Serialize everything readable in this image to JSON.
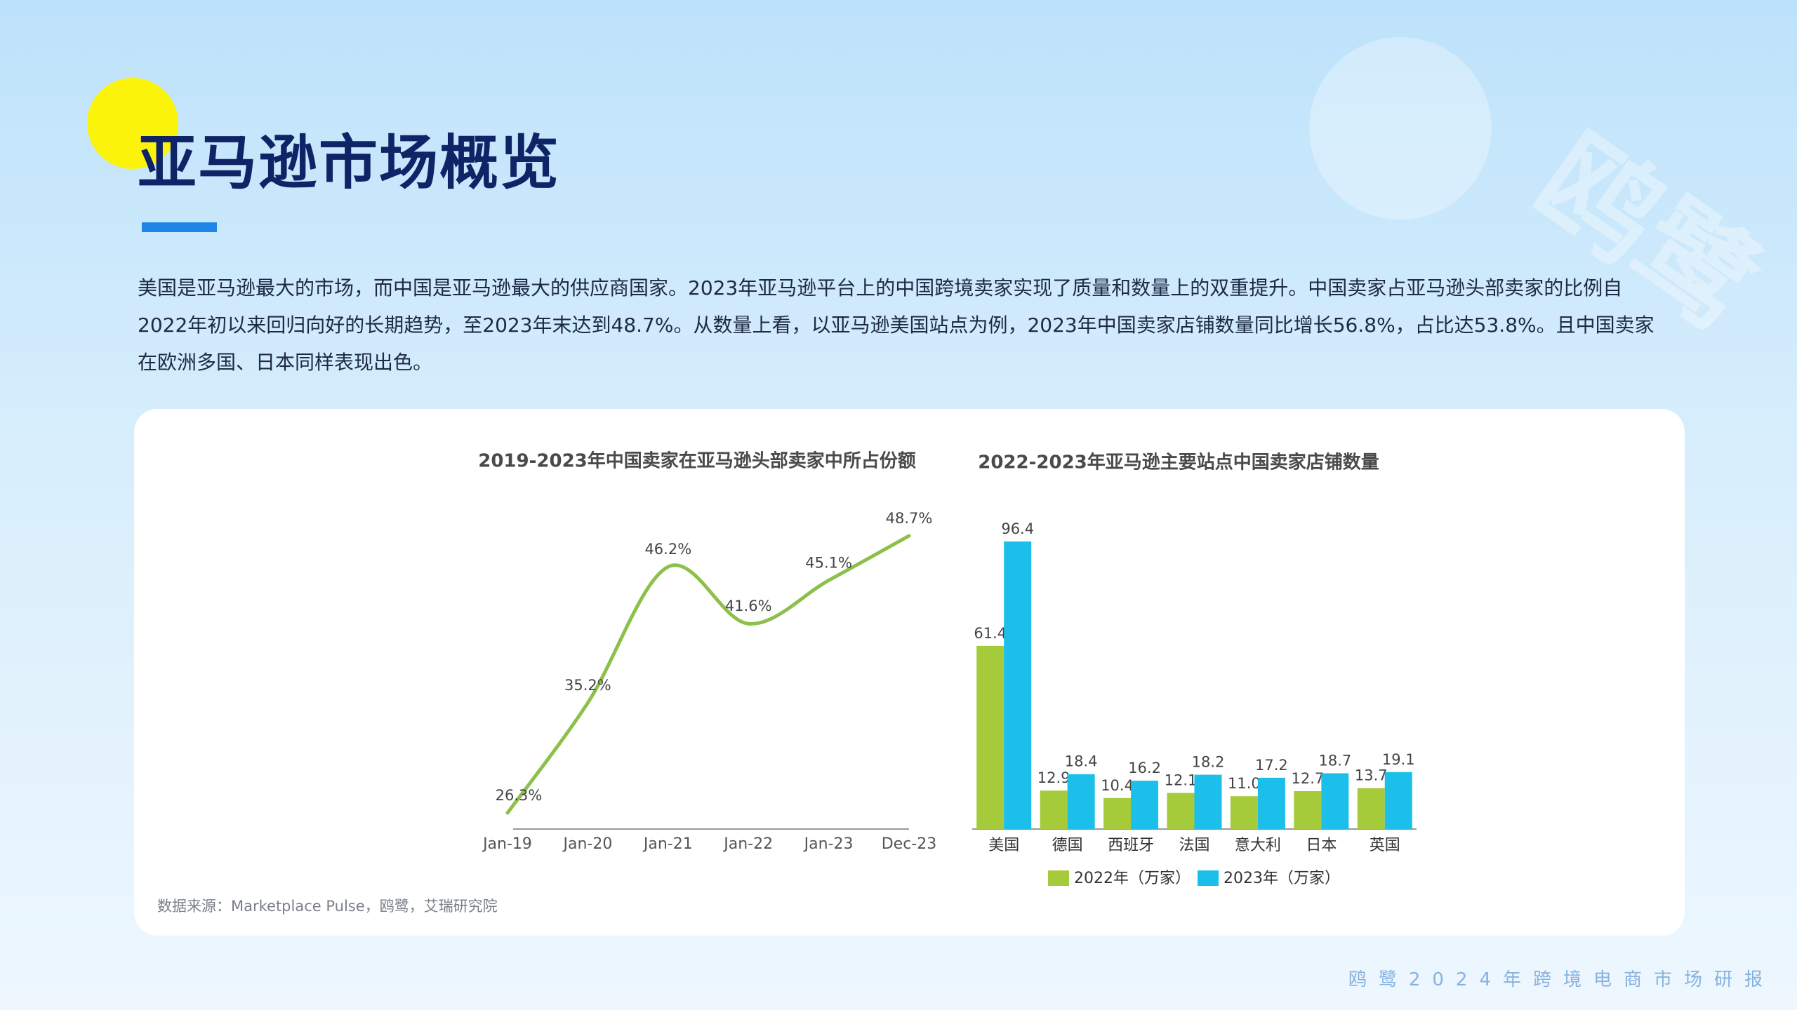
{
  "header": {
    "title": "亚马逊市场概览",
    "body": "美国是亚马逊最大的市场，而中国是亚马逊最大的供应商国家。2023年亚马逊平台上的中国跨境卖家实现了质量和数量上的双重提升。中国卖家占亚马逊头部卖家的比例自2022年初以来回归向好的长期趋势，至2023年末达到48.7%。从数量上看，以亚马逊美国站点为例，2023年中国卖家店铺数量同比增长56.8%，占比达53.8%。且中国卖家在欧洲多国、日本同样表现出色。",
    "source": "数据来源：Marketplace Pulse，鸥鹭，艾瑞研究院",
    "watermark": "鸥鹭",
    "footer": "鸥鹭2024年跨境电商市场研报"
  },
  "chart_data": [
    {
      "type": "line",
      "title": "2019-2023年中国卖家在亚马逊头部卖家中所占份额",
      "categories": [
        "Jan-19",
        "Jan-20",
        "Jan-21",
        "Jan-22",
        "Jan-23",
        "Dec-23"
      ],
      "values": [
        26.3,
        35.2,
        46.2,
        41.6,
        45.1,
        48.7
      ],
      "value_labels": [
        "26.3%",
        "35.2%",
        "46.2%",
        "41.6%",
        "45.1%",
        "48.7%"
      ],
      "color": "#8cc04a"
    },
    {
      "type": "bar",
      "title": "2022-2023年亚马逊主要站点中国卖家店铺数量",
      "categories": [
        "美国",
        "德国",
        "西班牙",
        "法国",
        "意大利",
        "日本",
        "英国"
      ],
      "series": [
        {
          "name": "2022年（万家）",
          "color": "#a5ca3a",
          "values": [
            61.4,
            12.9,
            10.4,
            12.1,
            11.0,
            12.7,
            13.7
          ],
          "value_labels": [
            "61.4",
            "12.9",
            "10.4",
            "12.1",
            "11.0",
            "12.7",
            "13.7"
          ]
        },
        {
          "name": "2023年（万家）",
          "color": "#1bbfe9",
          "values": [
            96.4,
            18.4,
            16.2,
            18.2,
            17.2,
            18.7,
            19.1
          ]
        }
      ]
    }
  ]
}
